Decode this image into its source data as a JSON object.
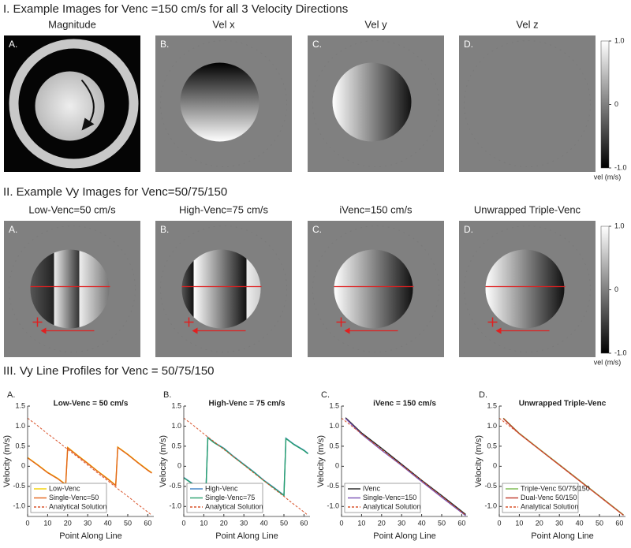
{
  "sections": [
    {
      "title": "I. Example Images for Venc =150 cm/s for all 3 Velocity Directions",
      "panels": [
        {
          "letter": "A.",
          "label": "Magnitude"
        },
        {
          "letter": "B.",
          "label": "Vel x"
        },
        {
          "letter": "C.",
          "label": "Vel y"
        },
        {
          "letter": "D.",
          "label": "Vel z"
        }
      ],
      "colorbar": {
        "ylim": [
          -1,
          1
        ],
        "yticks": [
          {
            "value": 1,
            "label": "1.0"
          },
          0,
          {
            "value": -1,
            "label": "-1.0"
          }
        ],
        "label": "vel (m/s)"
      }
    },
    {
      "title": "II. Example Vy Images for Venc=50/75/150",
      "panels": [
        {
          "letter": "A.",
          "label": "Low-Venc=50 cm/s"
        },
        {
          "letter": "B.",
          "label": "High-Venc=75 cm/s"
        },
        {
          "letter": "C.",
          "label": "iVenc=150 cm/s"
        },
        {
          "letter": "D.",
          "label": "Unwrapped Triple-Venc"
        }
      ],
      "colorbar": {
        "ylim": [
          -1,
          1
        ],
        "yticks": [
          {
            "value": 1,
            "label": "1.0"
          },
          0,
          {
            "value": -1,
            "label": "-1.0"
          }
        ],
        "label": "vel (m/s)"
      }
    },
    {
      "title": "III. Vy Line Profiles for Venc = 50/75/150"
    }
  ],
  "chart_data": [
    {
      "type": "line",
      "letter": "A.",
      "title": "Low-Venc = 50 cm/s",
      "xlabel": "Point Along Line",
      "ylabel": "Velocity (m/s)",
      "x": [
        0,
        5,
        10,
        15,
        19,
        20,
        25,
        30,
        35,
        40,
        44,
        45,
        50,
        55,
        60,
        62
      ],
      "series": [
        {
          "name": "Low-Venc",
          "color": "#f2cf00",
          "values": [
            0.22,
            0.04,
            -0.15,
            -0.3,
            -0.45,
            0.47,
            0.27,
            0.08,
            -0.12,
            -0.31,
            -0.47,
            0.48,
            0.3,
            0.1,
            -0.09,
            -0.16
          ]
        },
        {
          "name": "Single-Venc=50",
          "color": "#e3641a",
          "values": [
            0.21,
            0.03,
            -0.16,
            -0.31,
            -0.46,
            0.46,
            0.26,
            0.07,
            -0.13,
            -0.32,
            -0.48,
            0.47,
            0.29,
            0.09,
            -0.1,
            -0.17
          ]
        },
        {
          "name": "Analytical Solution",
          "color": "#d9542c",
          "dashed": true,
          "values": [
            1.2,
            1.01,
            0.81,
            0.62,
            0.46,
            0.42,
            0.23,
            0.03,
            -0.17,
            -0.36,
            -0.52,
            -0.56,
            -0.75,
            -0.95,
            -1.14,
            -1.22
          ]
        }
      ],
      "xlim": [
        0,
        63
      ],
      "xticks": [
        0,
        10,
        20,
        30,
        40,
        50,
        60
      ],
      "ylim": [
        -1.25,
        1.5
      ],
      "yticks": [
        1.5,
        {
          "value": 1,
          "label": "1.0"
        },
        0.5,
        0,
        -0.5,
        {
          "value": -1,
          "label": "-1.0"
        }
      ]
    },
    {
      "type": "line",
      "letter": "B.",
      "title": "High-Venc = 75 cm/s",
      "xlabel": "Point Along Line",
      "ylabel": "Velocity (m/s)",
      "x": [
        0,
        5,
        11,
        12,
        15,
        20,
        25,
        30,
        35,
        40,
        45,
        50,
        51,
        55,
        60,
        62
      ],
      "series": [
        {
          "name": "High-Venc",
          "color": "#3b7fc4",
          "values": [
            -0.28,
            -0.45,
            -0.7,
            0.72,
            0.6,
            0.45,
            0.24,
            0.05,
            -0.14,
            -0.35,
            -0.53,
            -0.72,
            0.7,
            0.55,
            0.4,
            0.32
          ]
        },
        {
          "name": "Single-Venc=75",
          "color": "#27a06d",
          "values": [
            -0.29,
            -0.46,
            -0.71,
            0.71,
            0.59,
            0.44,
            0.23,
            0.04,
            -0.15,
            -0.36,
            -0.54,
            -0.73,
            0.69,
            0.54,
            0.39,
            0.31
          ]
        },
        {
          "name": "Analytical Solution",
          "color": "#d9542c",
          "dashed": true,
          "values": [
            1.2,
            1.01,
            0.77,
            0.73,
            0.62,
            0.42,
            0.23,
            0.03,
            -0.17,
            -0.36,
            -0.56,
            -0.75,
            -0.79,
            -0.95,
            -1.14,
            -1.22
          ]
        }
      ],
      "xlim": [
        0,
        63
      ],
      "xticks": [
        0,
        10,
        20,
        30,
        40,
        50,
        60
      ],
      "ylim": [
        -1.25,
        1.5
      ],
      "yticks": [
        1.5,
        {
          "value": 1,
          "label": "1.0"
        },
        0.5,
        0,
        -0.5,
        {
          "value": -1,
          "label": "-1.0"
        }
      ]
    },
    {
      "type": "line",
      "letter": "C.",
      "title": "iVenc = 150 cm/s",
      "xlabel": "Point Along Line",
      "ylabel": "Velocity (m/s)",
      "x": [
        0,
        2,
        10,
        20,
        30,
        40,
        50,
        62
      ],
      "series": [
        {
          "name": "iVenc",
          "color": "#222222",
          "values": [
            null,
            1.21,
            0.83,
            0.45,
            0.05,
            -0.35,
            -0.73,
            -1.2
          ]
        },
        {
          "name": "Single-Venc=150",
          "color": "#7b52b5",
          "values": [
            null,
            1.19,
            0.8,
            0.4,
            0.02,
            -0.38,
            -0.77,
            -1.23
          ]
        },
        {
          "name": "Analytical Solution",
          "color": "#d9542c",
          "dashed": true,
          "values": [
            1.2,
            1.12,
            0.81,
            0.42,
            0.03,
            -0.36,
            -0.75,
            -1.22
          ]
        }
      ],
      "xlim": [
        0,
        63
      ],
      "xticks": [
        0,
        10,
        20,
        30,
        40,
        50,
        60
      ],
      "ylim": [
        -1.25,
        1.5
      ],
      "yticks": [
        1.5,
        {
          "value": 1,
          "label": "1.0"
        },
        0.5,
        0,
        -0.5,
        {
          "value": -1,
          "label": "-1.0"
        }
      ]
    },
    {
      "type": "line",
      "letter": "D.",
      "title": "Unwrapped Triple-Venc",
      "xlabel": "Point Along Line",
      "ylabel": "Velocity (m/s)",
      "x": [
        0,
        2,
        10,
        20,
        30,
        40,
        50,
        62
      ],
      "series": [
        {
          "name": "Triple-Venc 50/75/150",
          "color": "#79b94c",
          "values": [
            null,
            1.2,
            0.82,
            0.43,
            0.04,
            -0.35,
            -0.74,
            -1.21
          ]
        },
        {
          "name": "Dual-Venc 50/150",
          "color": "#c0392b",
          "values": [
            null,
            1.19,
            0.81,
            0.42,
            0.03,
            -0.36,
            -0.75,
            -1.22
          ]
        },
        {
          "name": "Analytical Solution",
          "color": "#d9542c",
          "dashed": true,
          "values": [
            1.2,
            1.12,
            0.81,
            0.42,
            0.03,
            -0.36,
            -0.75,
            -1.22
          ]
        }
      ],
      "xlim": [
        0,
        63
      ],
      "xticks": [
        0,
        10,
        20,
        30,
        40,
        50,
        60
      ],
      "ylim": [
        -1.25,
        1.5
      ],
      "yticks": [
        1.5,
        {
          "value": 1,
          "label": "1.0"
        },
        0.5,
        0,
        -0.5,
        {
          "value": -1,
          "label": "-1.0"
        }
      ]
    }
  ]
}
